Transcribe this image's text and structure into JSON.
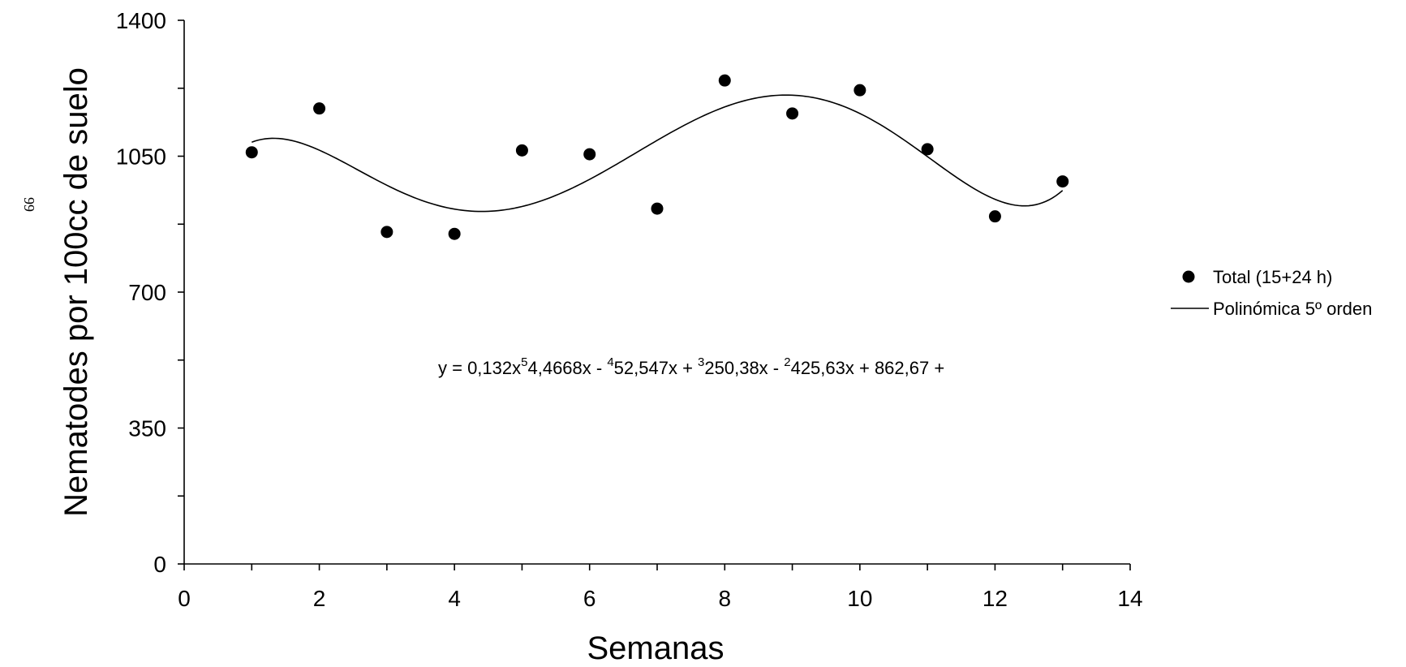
{
  "page_number": "99",
  "chart_data": {
    "type": "scatter",
    "xlabel": "Semanas",
    "ylabel": "Nematodes por 100cc de suelo",
    "xlim": [
      0,
      14
    ],
    "ylim": [
      0,
      1400
    ],
    "xticks": [
      0,
      2,
      4,
      6,
      8,
      10,
      12,
      14
    ],
    "yticks": [
      0,
      350,
      700,
      1050,
      1400
    ],
    "grid": false,
    "legend_position": "right",
    "series": [
      {
        "name": "Total (15+24 h)",
        "marker": "circle",
        "color": "#000000",
        "x": [
          1,
          2,
          3,
          4,
          5,
          6,
          7,
          8,
          9,
          10,
          11,
          12,
          13
        ],
        "y": [
          1060,
          1173,
          855,
          850,
          1065,
          1055,
          915,
          1245,
          1160,
          1220,
          1068,
          895,
          985
        ]
      },
      {
        "name": "Polinómica 5º orden",
        "line": "solid",
        "color": "#000000",
        "coefficients": [
          862.67,
          425.63,
          -250.38,
          52.547,
          -4.4668,
          0.132
        ],
        "x_range": [
          1,
          13
        ]
      }
    ],
    "annotation": {
      "parts": [
        "y = 0,132x",
        "5",
        "4,4668x - ",
        "4",
        "52,547x + ",
        "3",
        "250,38x - ",
        "2",
        "425,63x + 862,67 +"
      ]
    }
  }
}
